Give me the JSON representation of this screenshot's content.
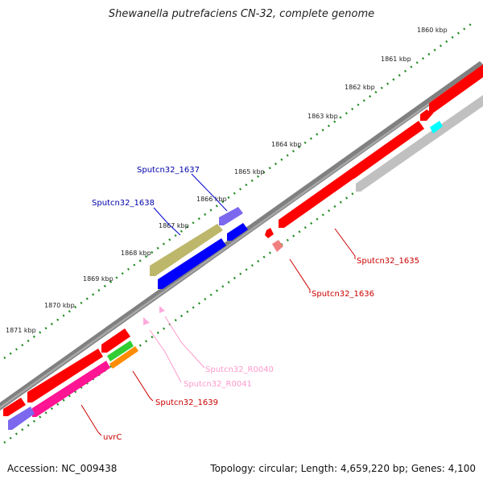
{
  "title": "Shewanella putrefaciens CN-32, complete genome",
  "footer": {
    "accession": "Accession: NC_009438",
    "summary": "Topology: circular; Length: 4,659,220 bp; Genes: 4,100"
  },
  "colors": {
    "backbone": "#808080",
    "ruler": "#228b22",
    "cds": "#ff0000",
    "cds_alt": "#0000ff",
    "rrna": "#ffaadd"
  },
  "kbp_labels": [
    "1860 kbp",
    "1861 kbp",
    "1862 kbp",
    "1863 kbp",
    "1864 kbp",
    "1865 kbp",
    "1866 kbp",
    "1867 kbp",
    "1868 kbp",
    "1869 kbp",
    "1870 kbp",
    "1871 kbp"
  ],
  "gene_labels": {
    "g1637": "Sputcn32_1637",
    "g1638": "Sputcn32_1638",
    "g1635": "Sputcn32_1635",
    "g1636": "Sputcn32_1636",
    "r0040": "Sputcn32_R0040",
    "r0041": "Sputcn32_R0041",
    "g1639": "Sputcn32_1639",
    "uvrc": "uvrC"
  }
}
